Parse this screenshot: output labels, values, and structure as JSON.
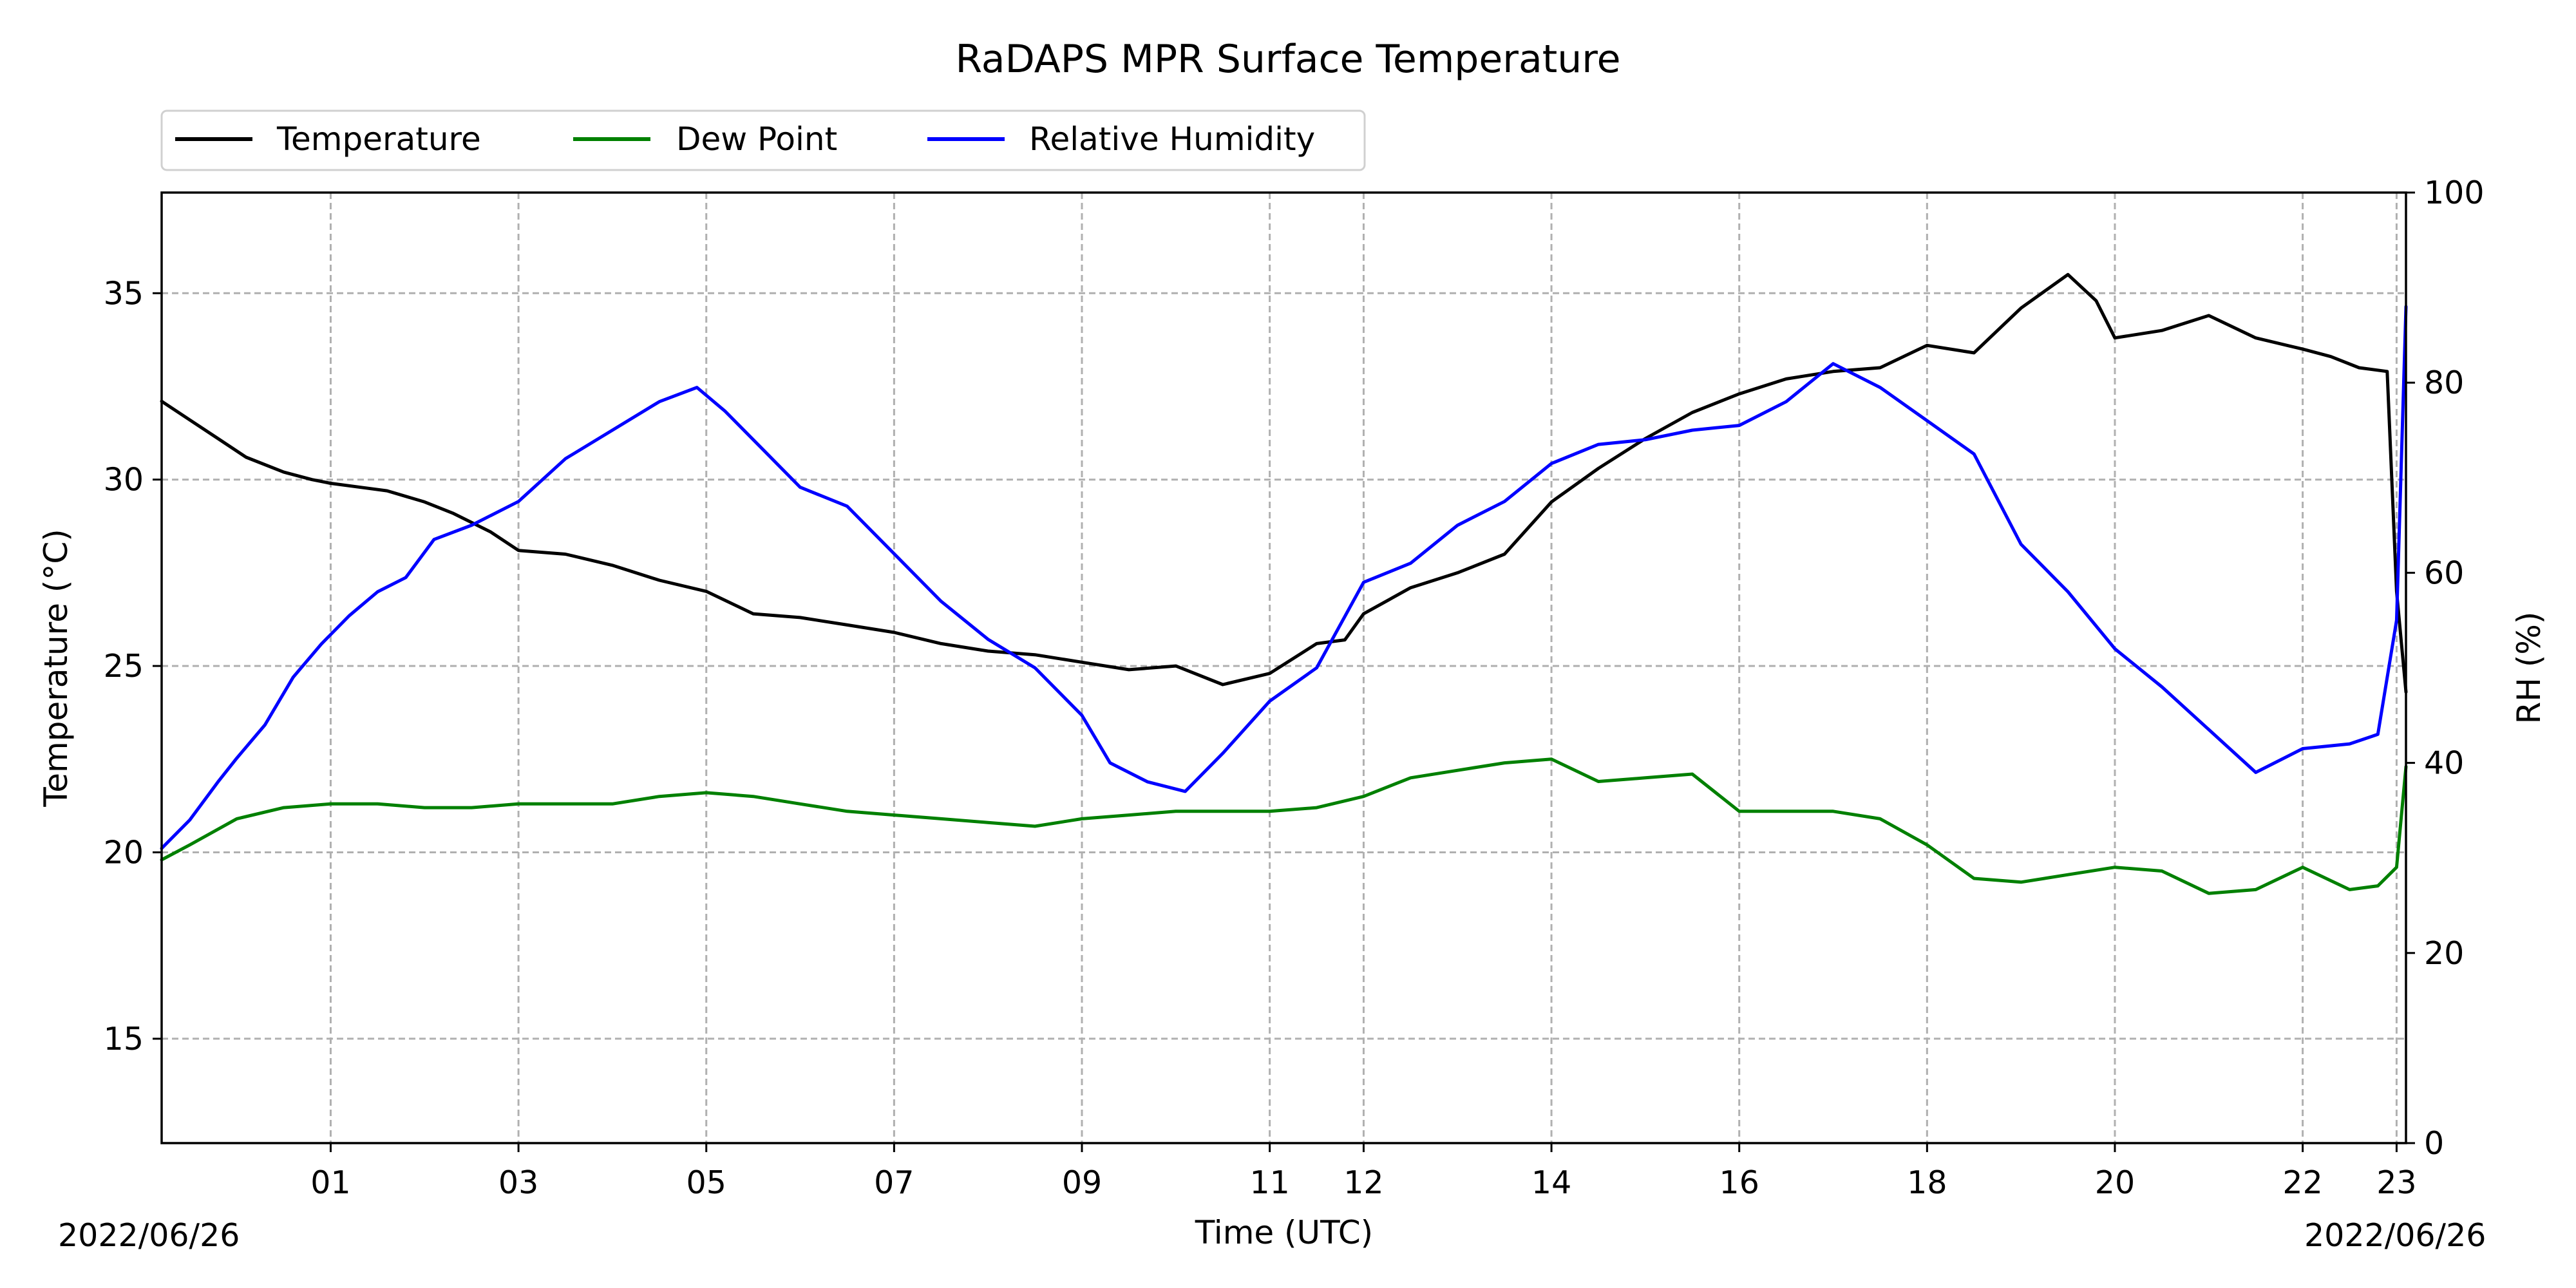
{
  "chart_data": {
    "type": "line",
    "title": "RaDAPS MPR Surface Temperature",
    "xlabel": "Time (UTC)",
    "ylabel": "Temperature ($^\\circ$C)",
    "ylabel_display": "Temperature (°C)",
    "y2label": "RH (%)",
    "date_start_label": "2022/06/26",
    "date_end_label": "2022/06/26",
    "x_unit": "hour UTC",
    "xlim": [
      -0.8,
      23.1
    ],
    "ylim": [
      12.2,
      37.7
    ],
    "y2lim": [
      0,
      100
    ],
    "x_ticks": [
      {
        "value": 1,
        "label": "01"
      },
      {
        "value": 3,
        "label": "03"
      },
      {
        "value": 5,
        "label": "05"
      },
      {
        "value": 7,
        "label": "07"
      },
      {
        "value": 9,
        "label": "09"
      },
      {
        "value": 11,
        "label": "11"
      },
      {
        "value": 12,
        "label": "12"
      },
      {
        "value": 14,
        "label": "14"
      },
      {
        "value": 16,
        "label": "16"
      },
      {
        "value": 18,
        "label": "18"
      },
      {
        "value": 20,
        "label": "20"
      },
      {
        "value": 22,
        "label": "22"
      },
      {
        "value": 23,
        "label": "23"
      }
    ],
    "y_ticks": [
      15,
      20,
      25,
      30,
      35
    ],
    "y2_ticks": [
      0,
      20,
      40,
      60,
      80,
      100
    ],
    "grid": true,
    "legend": {
      "placement": "top-left, above plot",
      "columns": 3
    },
    "series": [
      {
        "name": "Temperature",
        "axis": "left",
        "color": "#000000",
        "x": [
          -0.8,
          -0.5,
          -0.2,
          0.1,
          0.5,
          0.8,
          1.0,
          1.3,
          1.6,
          2.0,
          2.3,
          2.7,
          3.0,
          3.5,
          4.0,
          4.5,
          5.0,
          5.5,
          6.0,
          6.5,
          7.0,
          7.5,
          8.0,
          8.5,
          9.0,
          9.5,
          10.0,
          10.5,
          11.0,
          11.5,
          11.8,
          12.0,
          12.5,
          13.0,
          13.5,
          14.0,
          14.5,
          15.0,
          15.5,
          16.0,
          16.5,
          17.0,
          17.5,
          18.0,
          18.5,
          19.0,
          19.5,
          19.8,
          20.0,
          20.5,
          21.0,
          21.5,
          22.0,
          22.3,
          22.6,
          22.9,
          23.0,
          23.1
        ],
        "values": [
          32.1,
          31.6,
          31.1,
          30.6,
          30.2,
          30.0,
          29.9,
          29.8,
          29.7,
          29.4,
          29.1,
          28.6,
          28.1,
          28.0,
          27.7,
          27.3,
          27.0,
          26.4,
          26.3,
          26.1,
          25.9,
          25.6,
          25.4,
          25.3,
          25.1,
          24.9,
          25.0,
          24.5,
          24.8,
          25.6,
          25.7,
          26.4,
          27.1,
          27.5,
          28.0,
          29.4,
          30.3,
          31.1,
          31.8,
          32.3,
          32.7,
          32.9,
          33.0,
          33.6,
          33.4,
          34.6,
          35.5,
          34.8,
          33.8,
          34.0,
          34.4,
          33.8,
          33.5,
          33.3,
          33.0,
          32.9,
          27.0,
          24.3
        ]
      },
      {
        "name": "Dew Point",
        "axis": "left",
        "color": "#008000",
        "x": [
          -0.8,
          -0.5,
          0.0,
          0.5,
          1.0,
          1.5,
          2.0,
          2.5,
          3.0,
          3.5,
          4.0,
          4.5,
          5.0,
          5.5,
          6.0,
          6.5,
          7.0,
          7.5,
          8.0,
          8.5,
          9.0,
          9.5,
          10.0,
          10.5,
          11.0,
          11.5,
          12.0,
          12.5,
          13.0,
          13.5,
          14.0,
          14.5,
          15.0,
          15.5,
          16.0,
          16.5,
          17.0,
          17.5,
          18.0,
          18.5,
          19.0,
          19.5,
          20.0,
          20.5,
          21.0,
          21.5,
          22.0,
          22.5,
          22.8,
          23.0,
          23.1
        ],
        "values": [
          19.8,
          20.2,
          20.9,
          21.2,
          21.3,
          21.3,
          21.2,
          21.2,
          21.3,
          21.3,
          21.3,
          21.5,
          21.6,
          21.5,
          21.3,
          21.1,
          21.0,
          20.9,
          20.8,
          20.7,
          20.9,
          21.0,
          21.1,
          21.1,
          21.1,
          21.2,
          21.5,
          22.0,
          22.2,
          22.4,
          22.5,
          21.9,
          22.0,
          22.1,
          21.1,
          21.1,
          21.1,
          20.9,
          20.2,
          19.3,
          19.2,
          19.4,
          19.6,
          19.5,
          18.9,
          19.0,
          19.6,
          19.0,
          19.1,
          19.6,
          22.3
        ]
      },
      {
        "name": "Relative Humidity",
        "axis": "right",
        "color": "#0000ff",
        "x": [
          -0.8,
          -0.5,
          -0.2,
          0.0,
          0.3,
          0.6,
          0.9,
          1.2,
          1.5,
          1.8,
          2.1,
          2.5,
          3.0,
          3.5,
          4.0,
          4.5,
          4.9,
          5.2,
          5.6,
          6.0,
          6.5,
          7.0,
          7.5,
          8.0,
          8.5,
          9.0,
          9.3,
          9.7,
          10.1,
          10.5,
          11.0,
          11.5,
          12.0,
          12.5,
          13.0,
          13.5,
          14.0,
          14.5,
          15.0,
          15.5,
          16.0,
          16.5,
          17.0,
          17.5,
          18.0,
          18.5,
          19.0,
          19.5,
          20.0,
          20.5,
          21.0,
          21.5,
          22.0,
          22.5,
          22.8,
          23.0,
          23.1
        ],
        "values": [
          31.0,
          34.0,
          38.0,
          40.5,
          44.0,
          49.0,
          52.5,
          55.5,
          58.0,
          59.5,
          63.5,
          65.0,
          67.5,
          72.0,
          75.0,
          78.0,
          79.5,
          77.0,
          73.0,
          69.0,
          67.0,
          62.0,
          57.0,
          53.0,
          50.0,
          45.0,
          40.0,
          38.0,
          37.0,
          41.0,
          46.5,
          50.0,
          59.0,
          61.0,
          65.0,
          67.5,
          71.5,
          73.5,
          74.0,
          75.0,
          75.5,
          78.0,
          82.0,
          79.5,
          76.0,
          72.5,
          63.0,
          58.0,
          52.0,
          48.0,
          43.5,
          39.0,
          41.5,
          42.0,
          43.0,
          55.0,
          88.0
        ]
      }
    ]
  }
}
